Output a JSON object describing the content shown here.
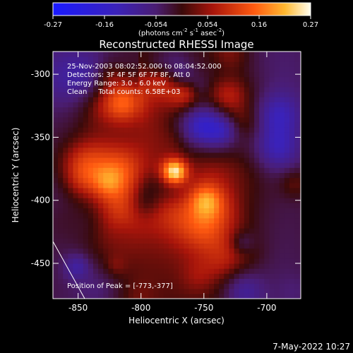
{
  "chart_data": {
    "type": "heatmap",
    "title": "Reconstructed RHESSI Image",
    "xlabel": "Heliocentric X (arcsec)",
    "ylabel": "Heliocentric Y (arcsec)",
    "xlim": [
      -870,
      -673
    ],
    "ylim": [
      -478,
      -282
    ],
    "x_ticks": [
      -850,
      -800,
      -750,
      -700
    ],
    "y_ticks": [
      -300,
      -350,
      -400,
      -450
    ],
    "colorbar": {
      "ticks": [
        "-0.27",
        "-0.16",
        "-0.054",
        "0.054",
        "0.16",
        "0.27"
      ],
      "range": [
        -0.27,
        0.27
      ],
      "units_html": "(photons cm<tspan dy='-5' font-size='7'>-2</tspan><tspan dy='5'> s</tspan><tspan dy='-5' font-size='7'>-1</tspan><tspan dy='5'> asec</tspan><tspan dy='-5' font-size='7'>-2</tspan><tspan dy='5'>)</tspan>"
    },
    "peak": {
      "x": -773,
      "y": -377,
      "value": 0.27
    },
    "annotations": [
      "25-Nov-2003 08:02:52.000 to 08:04:52.000",
      "Detectors: 3F 4F 5F 6F 7F 8F, Att 0",
      "Energy Range: 3.0 - 6.0 keV",
      "Clean     Total counts: 6.58E+03"
    ],
    "peak_label": "Position of Peak = [-773,-377]",
    "grid": false,
    "legend": "none"
  },
  "footer": {
    "date": "7-May-2022 10:27"
  }
}
